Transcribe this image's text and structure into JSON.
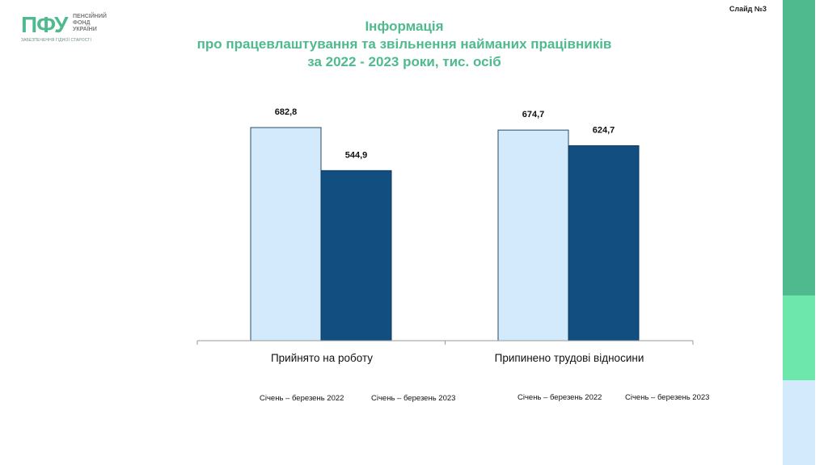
{
  "logo": {
    "mark": "ПФУ",
    "line1": "ПЕНСІЙНИЙ",
    "line2": "ФОНД",
    "line3": "УКРАЇНИ",
    "tagline": "ЗАБЕЗПЕЧЕННЯ ГІДНОЇ СТАРОСТІ"
  },
  "slide_number": "Слайд №3",
  "title": {
    "line1": "Інформація",
    "line2": "про працевлаштування та звільнення найманих працівників",
    "line3": "за 2022 - 2023  роки,  тис. осіб"
  },
  "colors": {
    "accent": "#4fba8e",
    "series_2022": "#d2eafb",
    "series_2023": "#124e80",
    "strip_mid": "#6ee7ad"
  },
  "chart_data": {
    "type": "bar",
    "categories": [
      "Прийнято на роботу",
      "Припинено трудові відносини"
    ],
    "series": [
      {
        "values": [
          682.8,
          674.7
        ],
        "labels": [
          "682,8",
          "674,7"
        ]
      },
      {
        "values": [
          544.9,
          624.7
        ],
        "labels": [
          "544,9",
          "624,7"
        ]
      }
    ],
    "legend_groups": [
      [
        "Січень – березень 2022",
        "Січень – березень 2023"
      ],
      [
        "Січень – березень 2022",
        "Січень – березень 2023"
      ]
    ],
    "title": "",
    "xlabel": "",
    "ylabel": "",
    "ylim": [
      0,
      900
    ],
    "grid": false,
    "legend_position": "bottom"
  }
}
